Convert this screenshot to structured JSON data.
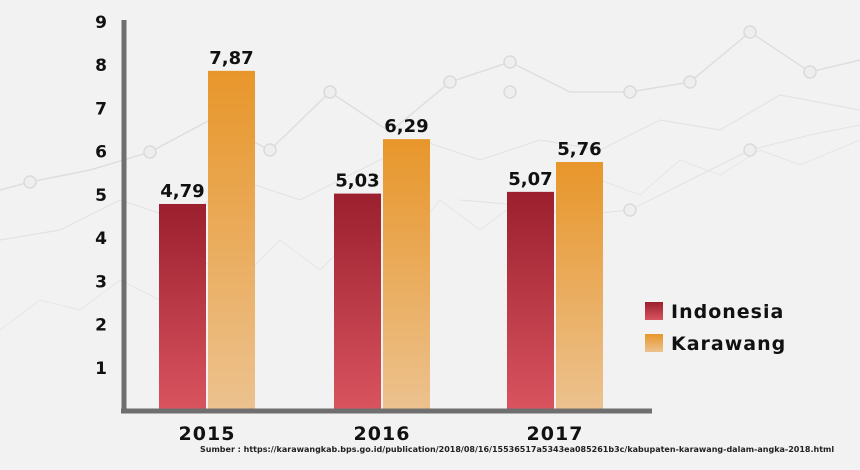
{
  "chart_data": {
    "type": "bar",
    "categories": [
      "2015",
      "2016",
      "2017"
    ],
    "series": [
      {
        "name": "Indonesia",
        "values": [
          4.79,
          5.03,
          5.07
        ],
        "color_top": "#9b1f2e",
        "color_bottom": "#d9545f"
      },
      {
        "name": "Karawang",
        "values": [
          7.87,
          6.29,
          5.76
        ],
        "color_top": "#e8962a",
        "color_bottom": "#ecc28f"
      }
    ],
    "value_labels": [
      [
        "4,79",
        "5,03",
        "5,07"
      ],
      [
        "7,87",
        "6,29",
        "5,76"
      ]
    ],
    "yticks": [
      "1",
      "2",
      "3",
      "4",
      "5",
      "6",
      "7",
      "8",
      "9"
    ],
    "ylim": [
      0,
      9
    ],
    "legend_position": "right",
    "grid": false
  },
  "source": "Sumber : https://karawangkab.bps.go.id/publication/2018/08/16/15536517a5343ea085261b3c/kabupaten-karawang-dalam-angka-2018.html"
}
